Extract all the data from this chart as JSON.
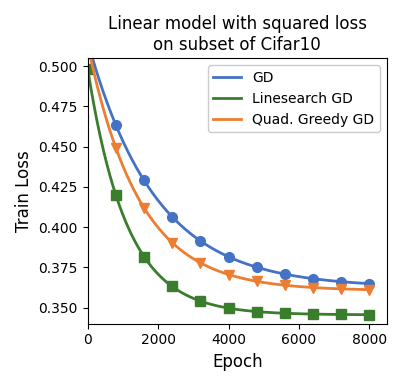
{
  "title": "Linear model with squared loss\non subset of Cifar10",
  "xlabel": "Epoch",
  "ylabel": "Train Loss",
  "xlim": [
    0,
    8500
  ],
  "ylim": [
    0.34,
    0.505
  ],
  "yticks": [
    0.35,
    0.375,
    0.4,
    0.425,
    0.45,
    0.475,
    0.5
  ],
  "xticks": [
    0,
    2000,
    4000,
    6000,
    8000
  ],
  "gd": {
    "label": "GD",
    "color": "#4472C4",
    "marker": "o",
    "a": 0.153,
    "b": 0.00052,
    "c": 0.3625
  },
  "linesearch": {
    "label": "Linesearch GD",
    "color": "#3a7d2c",
    "marker": "s",
    "a": 0.153,
    "b": 0.0009,
    "c": 0.3455
  },
  "quad_greedy": {
    "label": "Quad. Greedy GD",
    "color": "#ED7D31",
    "marker": "v",
    "a": 0.153,
    "b": 0.00068,
    "c": 0.3605
  },
  "marker_epochs": [
    0,
    800,
    1600,
    2400,
    3200,
    4000,
    4800,
    5600,
    6400,
    7200,
    8000
  ],
  "n_points": 800,
  "epoch_max": 8000,
  "linewidth": 2.0,
  "markersize": 7,
  "legend_fontsize": 10,
  "title_fontsize": 12,
  "label_fontsize": 12
}
